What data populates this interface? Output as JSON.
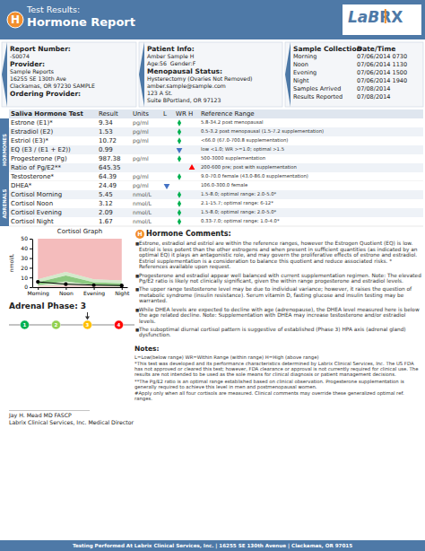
{
  "chart_data": {
    "type": "line",
    "title": "Cortisol Graph",
    "ylabel": "nmol/L",
    "categories": [
      "Morning",
      "Noon",
      "Evening",
      "Night"
    ],
    "values": [
      5.45,
      3.12,
      2.09,
      1.67
    ],
    "ref_upper": [
      8.0,
      15.7,
      8.0,
      7.0
    ],
    "ref_lower": [
      1.5,
      2.1,
      1.5,
      0.33
    ],
    "opt_upper": [
      5.0,
      12.0,
      5.0,
      4.0
    ],
    "opt_lower": [
      2.0,
      6.0,
      2.0,
      1.0
    ],
    "ylim": [
      0,
      50
    ],
    "yticks": [
      0,
      10,
      20,
      30,
      40,
      50
    ],
    "color": "#000000",
    "marker": "circle",
    "grid": false
  },
  "report": {
    "header": {
      "badge": "H",
      "title1": "Test Results:",
      "title2": "Hormone Report",
      "logo": [
        "LaB",
        "R",
        "X"
      ]
    },
    "boxes": [
      {
        "items": [
          {
            "label": "Report Number:",
            "lines": [
              "-S0074"
            ]
          },
          {
            "label": "Provider:",
            "lines": [
              "Sample Reports",
              "16255 SE 130th Ave",
              "Clackamas, OR 97230 SAMPLE"
            ]
          },
          {
            "label": "Ordering Provider:"
          }
        ]
      },
      {
        "items": [
          {
            "label": "Patient Info:",
            "lines": [
              "Amber Sample H",
              "Age:56  Gender:F"
            ]
          },
          {
            "label": "Menopausal Status:",
            "lines": [
              "Hysterectomy (Ovaries Not Removed)",
              "amber.sample@sample.com",
              "123 A St.",
              "Suite BPortland, OR 97123"
            ]
          }
        ]
      },
      {
        "columns": [
          "Sample Collection",
          "Date/Time"
        ],
        "rows": [
          [
            "Morning",
            "07/06/2014 0730"
          ],
          [
            "Noon",
            "07/06/2014 1130"
          ],
          [
            "Evening",
            "07/06/2014 1500"
          ],
          [
            "Night",
            "07/06/2014 1940"
          ],
          [
            "Samples Arrived",
            "07/08/2014"
          ],
          [
            "Results Reported",
            "07/08/2014"
          ]
        ]
      }
    ],
    "table": {
      "columns": [
        "Saliva Hormone Test",
        "Result",
        "Units",
        "L",
        "WR",
        "H",
        "Reference Range"
      ],
      "sections": [
        {
          "name": "HORMONES",
          "rows": [
            {
              "test": "Estrone (E1)*",
              "result": "9.34",
              "units": "pg/ml",
              "col": "WR",
              "marker": "diamond",
              "color": "#00b050",
              "ref": "5.8-34.2 post menopausal"
            },
            {
              "test": "Estradiol (E2)",
              "result": "1.53",
              "units": "pg/ml",
              "col": "WR",
              "marker": "diamond",
              "color": "#00b050",
              "ref": "0.5-3.2 post menopausal (1.5-7.2 supplementation)"
            },
            {
              "test": "Estriol (E3)*",
              "result": "10.72",
              "units": "pg/ml",
              "col": "WR",
              "marker": "diamond",
              "color": "#00b050",
              "ref": "<66.0 (67.0-700.8 supplementation)"
            },
            {
              "test": "EQ (E3 / (E1 + E2))",
              "result": "0.99",
              "col": "WR",
              "marker": "triangle-down",
              "color": "#4472c4",
              "ref": "low <1.0; WR >=1.0; optimal >1.5"
            },
            {
              "test": "Progesterone (Pg)",
              "result": "987.38",
              "units": "pg/ml",
              "col": "WR",
              "marker": "diamond",
              "color": "#00b050",
              "ref": "500-3000 supplementation"
            },
            {
              "test": "Ratio of Pg/E2**",
              "result": "645.35",
              "col": "H",
              "marker": "triangle-up",
              "color": "#ff0000",
              "ref": "200-600 pre; post with supplementation"
            },
            {
              "test": "Testosterone*",
              "result": "64.39",
              "units": "pg/ml",
              "col": "WR",
              "marker": "diamond",
              "color": "#00b050",
              "ref": "9.0-70.0 female (43.0-86.0 supplementation)"
            }
          ]
        },
        {
          "name": "ADRENALS",
          "rows": [
            {
              "test": "DHEA*",
              "result": "24.49",
              "units": "pg/ml",
              "col": "L",
              "marker": "triangle-down",
              "color": "#4472c4",
              "ref": "106.0-300.0 female"
            },
            {
              "test": "Cortisol Morning",
              "result": "5.45",
              "units": "nmol/L",
              "col": "WR",
              "marker": "diamond",
              "color": "#00b050",
              "ref": "1.5-8.0; optimal range: 2.0-5.0*"
            },
            {
              "test": "Cortisol Noon",
              "result": "3.12",
              "units": "nmol/L",
              "col": "WR",
              "marker": "diamond",
              "color": "#00b050",
              "ref": "2.1-15.7; optimal range: 6-12*"
            },
            {
              "test": "Cortisol Evening",
              "result": "2.09",
              "units": "nmol/L",
              "col": "WR",
              "marker": "diamond",
              "color": "#00b050",
              "ref": "1.5-8.0; optimal range: 2.0-5.0*"
            },
            {
              "test": "Cortisol Night",
              "result": "1.67",
              "units": "nmol/L",
              "col": "WR",
              "marker": "diamond",
              "color": "#00b050",
              "ref": "0.33-7.0; optimal range: 1.0-4.0*"
            }
          ]
        }
      ]
    },
    "comments": {
      "badge": "H",
      "title": "Hormone Comments:",
      "bullet": "■",
      "items": [
        "Estrone, estradiol and estriol are within the reference ranges, however the Estrogen Quotient (EQ) is low. Estriol is less potent than the other estrogens and when present in sufficient quantities (as indicated by an optimal EQ) it plays an antagonistic role, and may govern the proliferative effects of estrone and estradiol. Estriol supplementation is a consideration to balance this quotient and reduce associated risks. * References available upon request.",
        "Progesterone and estradiol appear well balanced with current supplementation regimen. Note: The elevated Pg/E2 ratio is likely not clinically significant, given the within range progesterone and estradiol levels.",
        "The upper range testosterone level may be due to individual variance; however, it raises the question of metabolic syndrome (insulin resistance). Serum vitamin D, fasting glucose and insulin testing may be warranted.",
        "While DHEA levels are expected to decline with age (adrenopause), the DHEA level measured here is below the age related decline. Note: Supplementation with DHEA may increase testosterone and/or estradiol levels.",
        "The suboptimal diurnal cortisol pattern is suggestive of established (Phase 3) HPA axis (adrenal gland) dysfunction."
      ]
    },
    "phase": {
      "label": "Adrenal Phase:",
      "value": 3,
      "phases": {
        "values": [
          1,
          2,
          3,
          4
        ],
        "colors": [
          "#00b050",
          "#92d050",
          "#ffc000",
          "#ff0000"
        ]
      }
    },
    "notes": {
      "title": "Notes:",
      "items": [
        "L=Low(below range) WR=Within Range (within range) H=High (above range)",
        "*This test was developed and its performance characteristics determined by Labrix Clinical Services, Inc. The US FDA has not approved or cleared this test; however, FDA clearance or approval is not currently required for clinical use. The results are not intended to be used as the sole means for clinical diagnosis or patient management decisions.",
        "**The Pg/E2 ratio is an optimal range established based on clinical observation. Progesterone supplementation is generally required to achieve this level in men and postmenopausal women.",
        "#Apply only when all four cortisols are measured. Clinical comments may override these generalized optimal ref. ranges."
      ]
    },
    "signature": [
      "Jay H. Mead MD FASCP",
      "Labrix Clinical Services, Inc. Medical Director"
    ],
    "footer": "Testing Performed At Labrix Clinical Services, Inc. | 16255 SE 130th Avenue | Clackamas, OR 97015"
  }
}
